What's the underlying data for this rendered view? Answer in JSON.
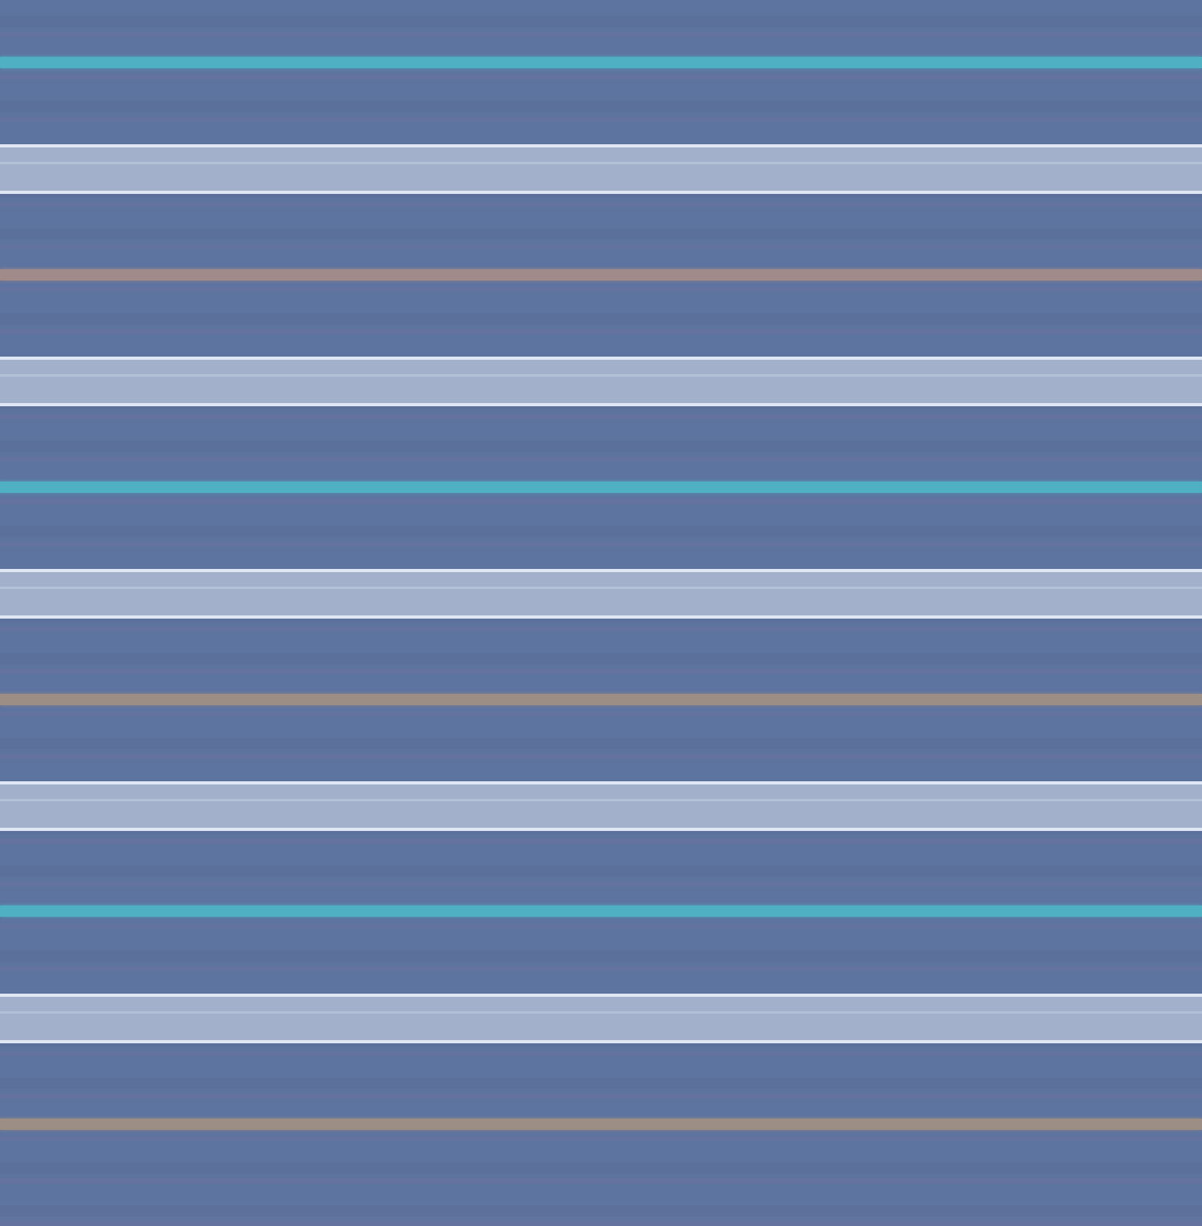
{
  "pattern": {
    "kind": "horizontal-stripes",
    "colors": {
      "background": "#5e74a0",
      "background_dark": "#5a6e98",
      "purple_tint": "#6a6f9e",
      "teal": "#4fb0c4",
      "light_band": "#a2b0cc",
      "light_edge": "#dfe6f4",
      "brown": "#a08a8a",
      "tan": "#9c8e84"
    },
    "sequence": [
      "teal",
      "light_band",
      "brown",
      "light_band",
      "teal",
      "light_band",
      "tan",
      "light_band",
      "teal",
      "light_band",
      "tan"
    ]
  }
}
